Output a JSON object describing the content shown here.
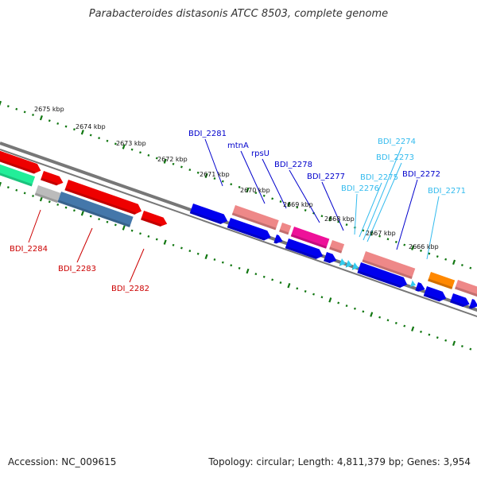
{
  "title": "Parabacteroides distasonis ATCC 8503, complete genome",
  "footer": {
    "accession": "Accession: NC_009615",
    "summary": "Topology: circular; Length: 4,811,379 bp; Genes: 3,954"
  },
  "ticks": [
    "2675 kbp",
    "2674 kbp",
    "2673 kbp",
    "2672 kbp",
    "2671 kbp",
    "2670 kbp",
    "2669 kbp",
    "2668 kbp",
    "2667 kbp",
    "2666 kbp"
  ],
  "labels_above": [
    {
      "text": "BDI_2281",
      "color": "#0000cc"
    },
    {
      "text": "mtnA",
      "color": "#0000cc"
    },
    {
      "text": "rpsU",
      "color": "#0000cc"
    },
    {
      "text": "BDI_2278",
      "color": "#0000cc"
    },
    {
      "text": "BDI_2277",
      "color": "#0000cc"
    },
    {
      "text": "BDI_2276",
      "color": "#33bbee"
    },
    {
      "text": "BDI_2275",
      "color": "#33bbee"
    },
    {
      "text": "BDI_2274",
      "color": "#33bbee"
    },
    {
      "text": "BDI_2273",
      "color": "#33bbee"
    },
    {
      "text": "BDI_2272",
      "color": "#0000cc"
    },
    {
      "text": "BDI_2271",
      "color": "#33bbee"
    }
  ],
  "labels_below": [
    {
      "text": "BDI_2284",
      "color": "#cc0000"
    },
    {
      "text": "BDI_2283",
      "color": "#cc0000"
    },
    {
      "text": "BDI_2282",
      "color": "#cc0000"
    }
  ],
  "colors": {
    "forward_red": "#ee0000",
    "forward_pink": "#ee8888",
    "forward_magenta": "#ee1199",
    "forward_orange": "#ff8800",
    "reverse_blue": "#0000ee",
    "reverse_cyan": "#33ccee",
    "reverse_steel": "#4477aa",
    "teal": "#22ee99",
    "gray": "#bbbbbb",
    "backbone": "#777777",
    "ruler": "#117711"
  }
}
